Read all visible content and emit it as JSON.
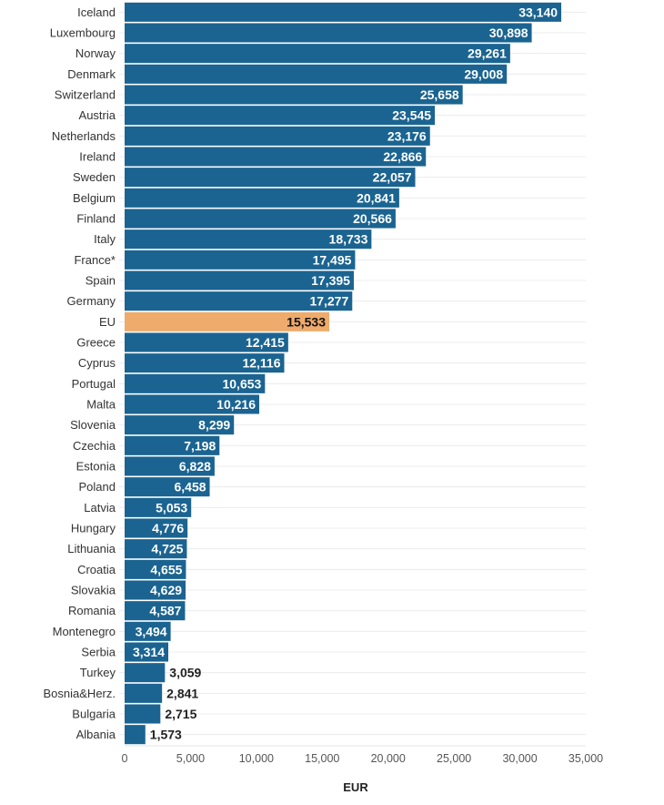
{
  "chart_data": {
    "type": "bar",
    "orientation": "horizontal",
    "title": "",
    "xlabel": "EUR",
    "ylabel": "",
    "xlim": [
      0,
      35000
    ],
    "xticks": [
      0,
      5000,
      10000,
      15000,
      20000,
      25000,
      30000,
      35000
    ],
    "xtick_labels": [
      "0",
      "5,000",
      "10,000",
      "15,000",
      "20,000",
      "25,000",
      "30,000",
      "35,000"
    ],
    "grid": true,
    "legend": "none",
    "colors": {
      "default": "#1b6491",
      "highlight": "#eeab6b",
      "label_inside": "#ffffff",
      "label_outside": "#222222"
    },
    "categories": [
      "Iceland",
      "Luxembourg",
      "Norway",
      "Denmark",
      "Switzerland",
      "Austria",
      "Netherlands",
      "Ireland",
      "Sweden",
      "Belgium",
      "Finland",
      "Italy",
      "France*",
      "Spain",
      "Germany",
      "EU",
      "Greece",
      "Cyprus",
      "Portugal",
      "Malta",
      "Slovenia",
      "Czechia",
      "Estonia",
      "Poland",
      "Latvia",
      "Hungary",
      "Lithuania",
      "Croatia",
      "Slovakia",
      "Romania",
      "Montenegro",
      "Serbia",
      "Turkey",
      "Bosnia&Herz.",
      "Bulgaria",
      "Albania"
    ],
    "values": [
      33140,
      30898,
      29261,
      29008,
      25658,
      23545,
      23176,
      22866,
      22057,
      20841,
      20566,
      18733,
      17495,
      17395,
      17277,
      15533,
      12415,
      12116,
      10653,
      10216,
      8299,
      7198,
      6828,
      6458,
      5053,
      4776,
      4725,
      4655,
      4629,
      4587,
      3494,
      3314,
      3059,
      2841,
      2715,
      1573
    ],
    "value_labels": [
      "33,140",
      "30,898",
      "29,261",
      "29,008",
      "25,658",
      "23,545",
      "23,176",
      "22,866",
      "22,057",
      "20,841",
      "20,566",
      "18,733",
      "17,495",
      "17,395",
      "17,277",
      "15,533",
      "12,415",
      "12,116",
      "10,653",
      "10,216",
      "8,299",
      "7,198",
      "6,828",
      "6,458",
      "5,053",
      "4,776",
      "4,725",
      "4,655",
      "4,629",
      "4,587",
      "3,494",
      "3,314",
      "3,059",
      "2,841",
      "2,715",
      "1,573"
    ],
    "highlight": [
      "EU"
    ],
    "labels_outside": [
      "Turkey",
      "Bosnia&Herz.",
      "Bulgaria",
      "Albania"
    ]
  }
}
